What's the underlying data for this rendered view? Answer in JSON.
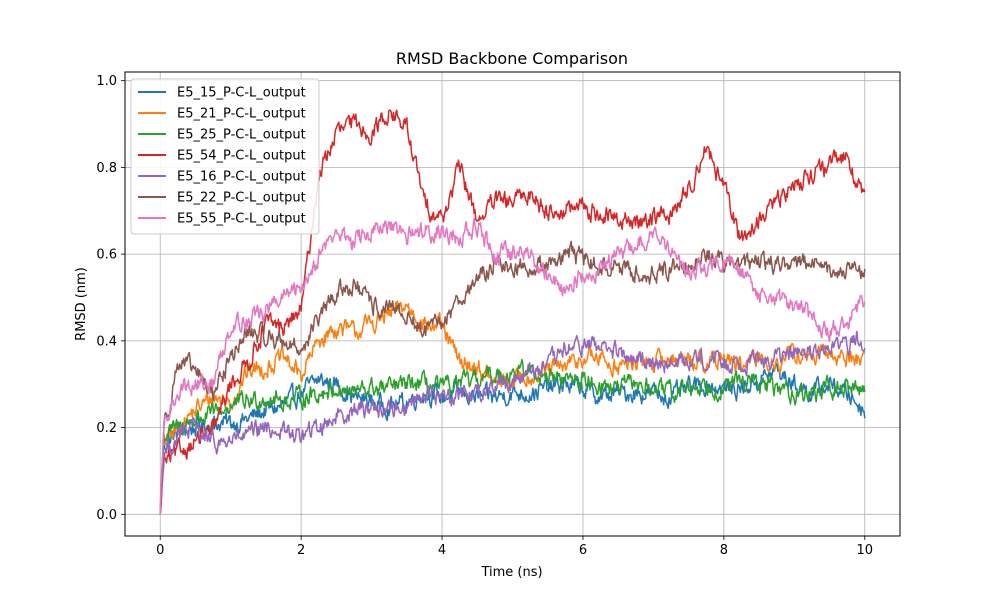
{
  "chart_data": {
    "type": "line",
    "title": "RMSD Backbone Comparison",
    "xlabel": "Time (ns)",
    "ylabel": "RMSD (nm)",
    "xlim": [
      -0.5,
      10.5
    ],
    "ylim": [
      -0.05,
      1.02
    ],
    "xticks": [
      0,
      2,
      4,
      6,
      8,
      10
    ],
    "xtick_labels": [
      "0",
      "2",
      "4",
      "6",
      "8",
      "10"
    ],
    "yticks": [
      0.0,
      0.2,
      0.4,
      0.6,
      0.8,
      1.0
    ],
    "ytick_labels": [
      "0.0",
      "0.2",
      "0.4",
      "0.6",
      "0.8",
      "1.0"
    ],
    "grid": true,
    "legend_position": "top-left",
    "x": [
      0,
      0.05,
      0.25,
      0.5,
      0.75,
      1.0,
      1.25,
      1.5,
      1.75,
      2.0,
      2.25,
      2.5,
      2.75,
      3.0,
      3.25,
      3.5,
      3.75,
      4.0,
      4.25,
      4.5,
      4.75,
      5.0,
      5.25,
      5.5,
      5.75,
      6.0,
      6.25,
      6.5,
      6.75,
      7.0,
      7.25,
      7.5,
      7.75,
      8.0,
      8.25,
      8.5,
      8.75,
      9.0,
      9.25,
      9.5,
      9.75,
      10.0
    ],
    "series": [
      {
        "name": "E5_15_P-C-L_output",
        "color": "#1f77b4",
        "values": [
          0.0,
          0.16,
          0.19,
          0.2,
          0.21,
          0.21,
          0.22,
          0.24,
          0.25,
          0.28,
          0.31,
          0.3,
          0.27,
          0.26,
          0.25,
          0.26,
          0.28,
          0.27,
          0.28,
          0.27,
          0.27,
          0.28,
          0.28,
          0.29,
          0.3,
          0.29,
          0.27,
          0.28,
          0.28,
          0.28,
          0.27,
          0.29,
          0.3,
          0.29,
          0.29,
          0.31,
          0.33,
          0.3,
          0.28,
          0.3,
          0.28,
          0.24
        ]
      },
      {
        "name": "E5_21_P-C-L_output",
        "color": "#ff7f0e",
        "values": [
          0.0,
          0.16,
          0.2,
          0.24,
          0.27,
          0.26,
          0.33,
          0.34,
          0.36,
          0.32,
          0.4,
          0.43,
          0.42,
          0.44,
          0.46,
          0.48,
          0.44,
          0.43,
          0.35,
          0.34,
          0.3,
          0.31,
          0.32,
          0.33,
          0.34,
          0.36,
          0.36,
          0.34,
          0.35,
          0.35,
          0.36,
          0.36,
          0.35,
          0.36,
          0.34,
          0.36,
          0.35,
          0.37,
          0.36,
          0.37,
          0.36,
          0.36
        ]
      },
      {
        "name": "E5_25_P-C-L_output",
        "color": "#2ca02c",
        "values": [
          0.0,
          0.18,
          0.2,
          0.22,
          0.23,
          0.25,
          0.26,
          0.27,
          0.26,
          0.27,
          0.28,
          0.29,
          0.28,
          0.29,
          0.29,
          0.3,
          0.3,
          0.29,
          0.3,
          0.31,
          0.32,
          0.33,
          0.33,
          0.32,
          0.31,
          0.31,
          0.3,
          0.29,
          0.3,
          0.29,
          0.28,
          0.29,
          0.3,
          0.29,
          0.31,
          0.3,
          0.29,
          0.28,
          0.28,
          0.29,
          0.29,
          0.29
        ]
      },
      {
        "name": "E5_54_P-C-L_output",
        "color": "#d62728",
        "values": [
          0.0,
          0.12,
          0.14,
          0.17,
          0.19,
          0.3,
          0.35,
          0.44,
          0.43,
          0.47,
          0.78,
          0.88,
          0.9,
          0.88,
          0.93,
          0.89,
          0.72,
          0.68,
          0.8,
          0.68,
          0.72,
          0.72,
          0.74,
          0.7,
          0.7,
          0.71,
          0.69,
          0.68,
          0.67,
          0.69,
          0.69,
          0.75,
          0.85,
          0.75,
          0.63,
          0.68,
          0.72,
          0.76,
          0.79,
          0.8,
          0.83,
          0.72
        ]
      },
      {
        "name": "E5_16_P-C-L_output",
        "color": "#9467bd",
        "values": [
          0.0,
          0.14,
          0.18,
          0.2,
          0.16,
          0.17,
          0.18,
          0.2,
          0.19,
          0.18,
          0.2,
          0.23,
          0.24,
          0.25,
          0.24,
          0.25,
          0.28,
          0.27,
          0.28,
          0.28,
          0.3,
          0.31,
          0.33,
          0.34,
          0.38,
          0.39,
          0.39,
          0.37,
          0.35,
          0.36,
          0.34,
          0.36,
          0.36,
          0.35,
          0.35,
          0.36,
          0.36,
          0.37,
          0.37,
          0.38,
          0.39,
          0.41
        ]
      },
      {
        "name": "E5_22_P-C-L_output",
        "color": "#8c564b",
        "values": [
          0.0,
          0.2,
          0.35,
          0.33,
          0.28,
          0.36,
          0.42,
          0.41,
          0.4,
          0.38,
          0.45,
          0.51,
          0.53,
          0.48,
          0.47,
          0.46,
          0.42,
          0.44,
          0.5,
          0.54,
          0.58,
          0.57,
          0.57,
          0.58,
          0.6,
          0.59,
          0.57,
          0.57,
          0.56,
          0.55,
          0.57,
          0.58,
          0.6,
          0.58,
          0.58,
          0.58,
          0.58,
          0.58,
          0.58,
          0.56,
          0.56,
          0.56
        ]
      },
      {
        "name": "E5_55_P-C-L_output",
        "color": "#e377c2",
        "values": [
          0.0,
          0.2,
          0.29,
          0.3,
          0.3,
          0.44,
          0.45,
          0.47,
          0.5,
          0.52,
          0.6,
          0.65,
          0.63,
          0.65,
          0.66,
          0.64,
          0.66,
          0.65,
          0.64,
          0.66,
          0.6,
          0.6,
          0.6,
          0.55,
          0.52,
          0.55,
          0.57,
          0.6,
          0.62,
          0.65,
          0.6,
          0.56,
          0.57,
          0.58,
          0.56,
          0.5,
          0.5,
          0.48,
          0.45,
          0.43,
          0.43,
          0.5
        ]
      }
    ]
  }
}
